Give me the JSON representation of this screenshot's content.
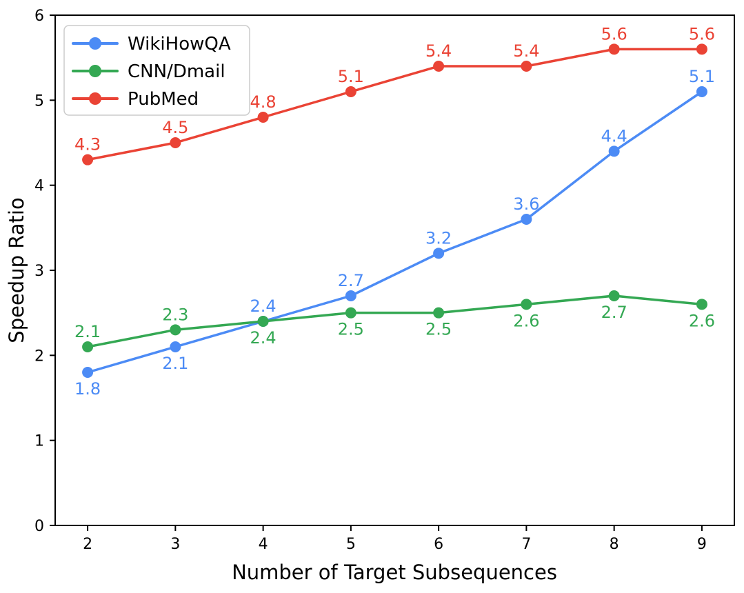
{
  "chart_data": {
    "type": "line",
    "title": "",
    "xlabel": "Number of Target Subsequences",
    "ylabel": "Speedup Ratio",
    "x": [
      2,
      3,
      4,
      5,
      6,
      7,
      8,
      9
    ],
    "xticks": [
      2,
      3,
      4,
      5,
      6,
      7,
      8,
      9
    ],
    "yticks": [
      0,
      1,
      2,
      3,
      4,
      5,
      6
    ],
    "xlim": [
      1.63,
      9.37
    ],
    "ylim": [
      0,
      6
    ],
    "grid": false,
    "legend_position": "upper-left",
    "axis_color": "#000000",
    "legend_border_color": "#cccccc",
    "series": [
      {
        "name": "WikiHowQA",
        "color": "#4C8BF5",
        "values": [
          1.8,
          2.1,
          2.4,
          2.7,
          3.2,
          3.6,
          4.4,
          5.1
        ],
        "label_side": [
          "below",
          "below",
          "above",
          "above",
          "above",
          "above",
          "above",
          "above"
        ]
      },
      {
        "name": "CNN/Dmail",
        "color": "#34A853",
        "values": [
          2.1,
          2.3,
          2.4,
          2.5,
          2.5,
          2.6,
          2.7,
          2.6
        ],
        "label_side": [
          "above",
          "above",
          "below",
          "below",
          "below",
          "below",
          "below",
          "below"
        ]
      },
      {
        "name": "PubMed",
        "color": "#EA4335",
        "values": [
          4.3,
          4.5,
          4.8,
          5.1,
          5.4,
          5.4,
          5.6,
          5.6
        ],
        "label_side": [
          "above",
          "above",
          "above",
          "above",
          "above",
          "above",
          "above",
          "above"
        ]
      }
    ]
  }
}
